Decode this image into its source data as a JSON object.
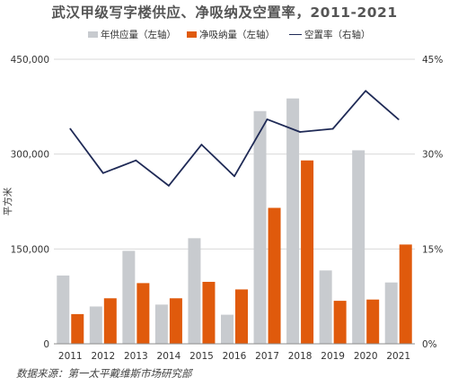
{
  "title": "武汉甲级写字楼供应、净吸纳及空置率，2011-2021",
  "source": "数据来源：第一太平戴维斯市场研究部",
  "chart_data": {
    "type": "bar",
    "categories": [
      "2011",
      "2012",
      "2013",
      "2014",
      "2015",
      "2016",
      "2017",
      "2018",
      "2019",
      "2020",
      "2021"
    ],
    "series": [
      {
        "name": "年供应量（左轴）",
        "kind": "bar",
        "axis": "left",
        "color": "#c8cbcf",
        "values": [
          108000,
          59000,
          147000,
          62000,
          167000,
          46000,
          368000,
          388000,
          116000,
          306000,
          97000
        ]
      },
      {
        "name": "净吸纳量（左轴）",
        "kind": "bar",
        "axis": "left",
        "color": "#e05a0c",
        "values": [
          47000,
          72000,
          96000,
          72000,
          98000,
          86000,
          215000,
          290000,
          68000,
          70000,
          157000
        ]
      },
      {
        "name": "空置率（右轴）",
        "kind": "line",
        "axis": "right",
        "color": "#1f2a56",
        "values": [
          34.0,
          27.0,
          29.0,
          25.0,
          31.5,
          26.5,
          35.5,
          33.5,
          34.0,
          40.0,
          35.5
        ]
      }
    ],
    "ylabel": "平方米",
    "ylim": [
      0,
      450000
    ],
    "yticks": [
      "0",
      "150,000",
      "300,000",
      "450,000"
    ],
    "ytick_values": [
      0,
      150000,
      300000,
      450000
    ],
    "y2lim": [
      0,
      45
    ],
    "y2ticks": [
      "0%",
      "15%",
      "30%",
      "45%"
    ],
    "y2tick_values": [
      0,
      15,
      30,
      45
    ],
    "grid": true,
    "legend": "top"
  }
}
